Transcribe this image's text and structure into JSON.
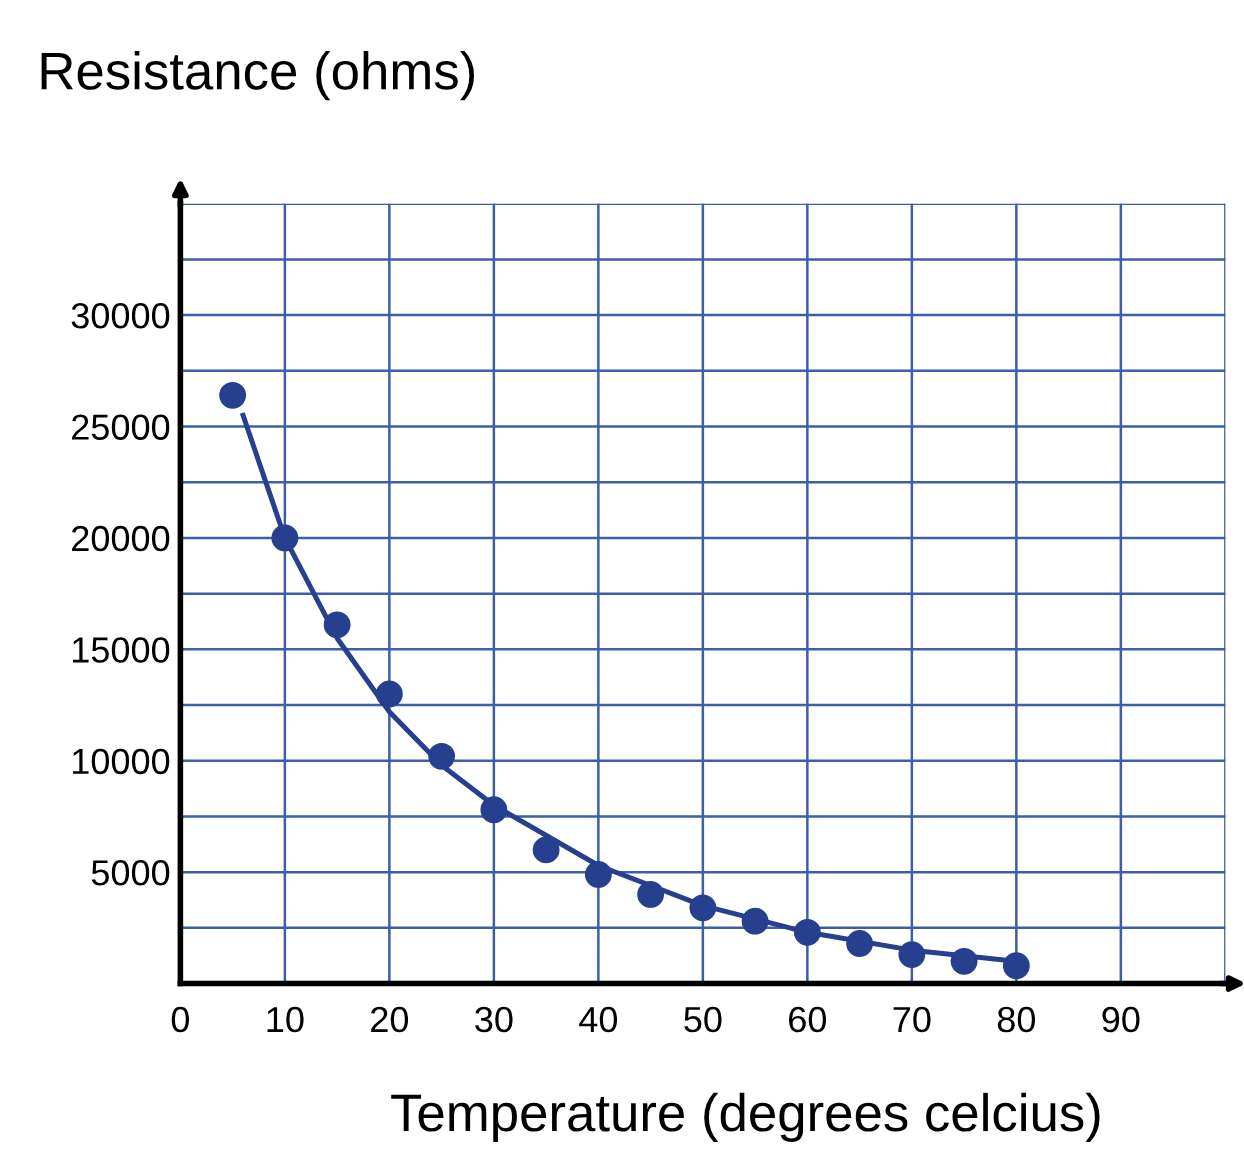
{
  "chart_data": {
    "type": "scatter",
    "ylabel": "Resistance (ohms)",
    "xlabel": "Temperature (degrees celcius)",
    "xlim": [
      0,
      100
    ],
    "ylim": [
      0,
      35000
    ],
    "xticks": [
      {
        "value": 0,
        "label": "0"
      },
      10,
      20,
      30,
      40,
      50,
      60,
      70,
      80,
      90,
      {
        "value": 100,
        "label": null
      }
    ],
    "yticks": [
      {
        "value": 2500,
        "label": null
      },
      5000,
      {
        "value": 7500,
        "label": null
      },
      10000,
      {
        "value": 12500,
        "label": null
      },
      15000,
      {
        "value": 17500,
        "label": null
      },
      20000,
      {
        "value": 22500,
        "label": null
      },
      25000,
      {
        "value": 27500,
        "label": null
      },
      30000,
      {
        "value": 32500,
        "label": null
      },
      {
        "value": 35000,
        "label": null
      }
    ],
    "grid": true,
    "series": [
      {
        "marker": "circle",
        "color": "#263f8f",
        "x": [
          5,
          10,
          15,
          20,
          25,
          30,
          35,
          40,
          45,
          50,
          55,
          60,
          65,
          70,
          75,
          80
        ],
        "values": [
          26400,
          20000,
          16100,
          13000,
          10200,
          7800,
          6000,
          4900,
          4000,
          3400,
          2800,
          2300,
          1800,
          1300,
          1000,
          800
        ]
      },
      {
        "type": "line",
        "color": "#263f8f",
        "x": [
          6,
          10,
          15,
          20,
          25,
          30,
          40,
          50,
          60,
          70,
          80
        ],
        "values": [
          25500,
          20000,
          15500,
          12200,
          9800,
          8000,
          5300,
          3500,
          2300,
          1500,
          1000
        ]
      }
    ]
  }
}
